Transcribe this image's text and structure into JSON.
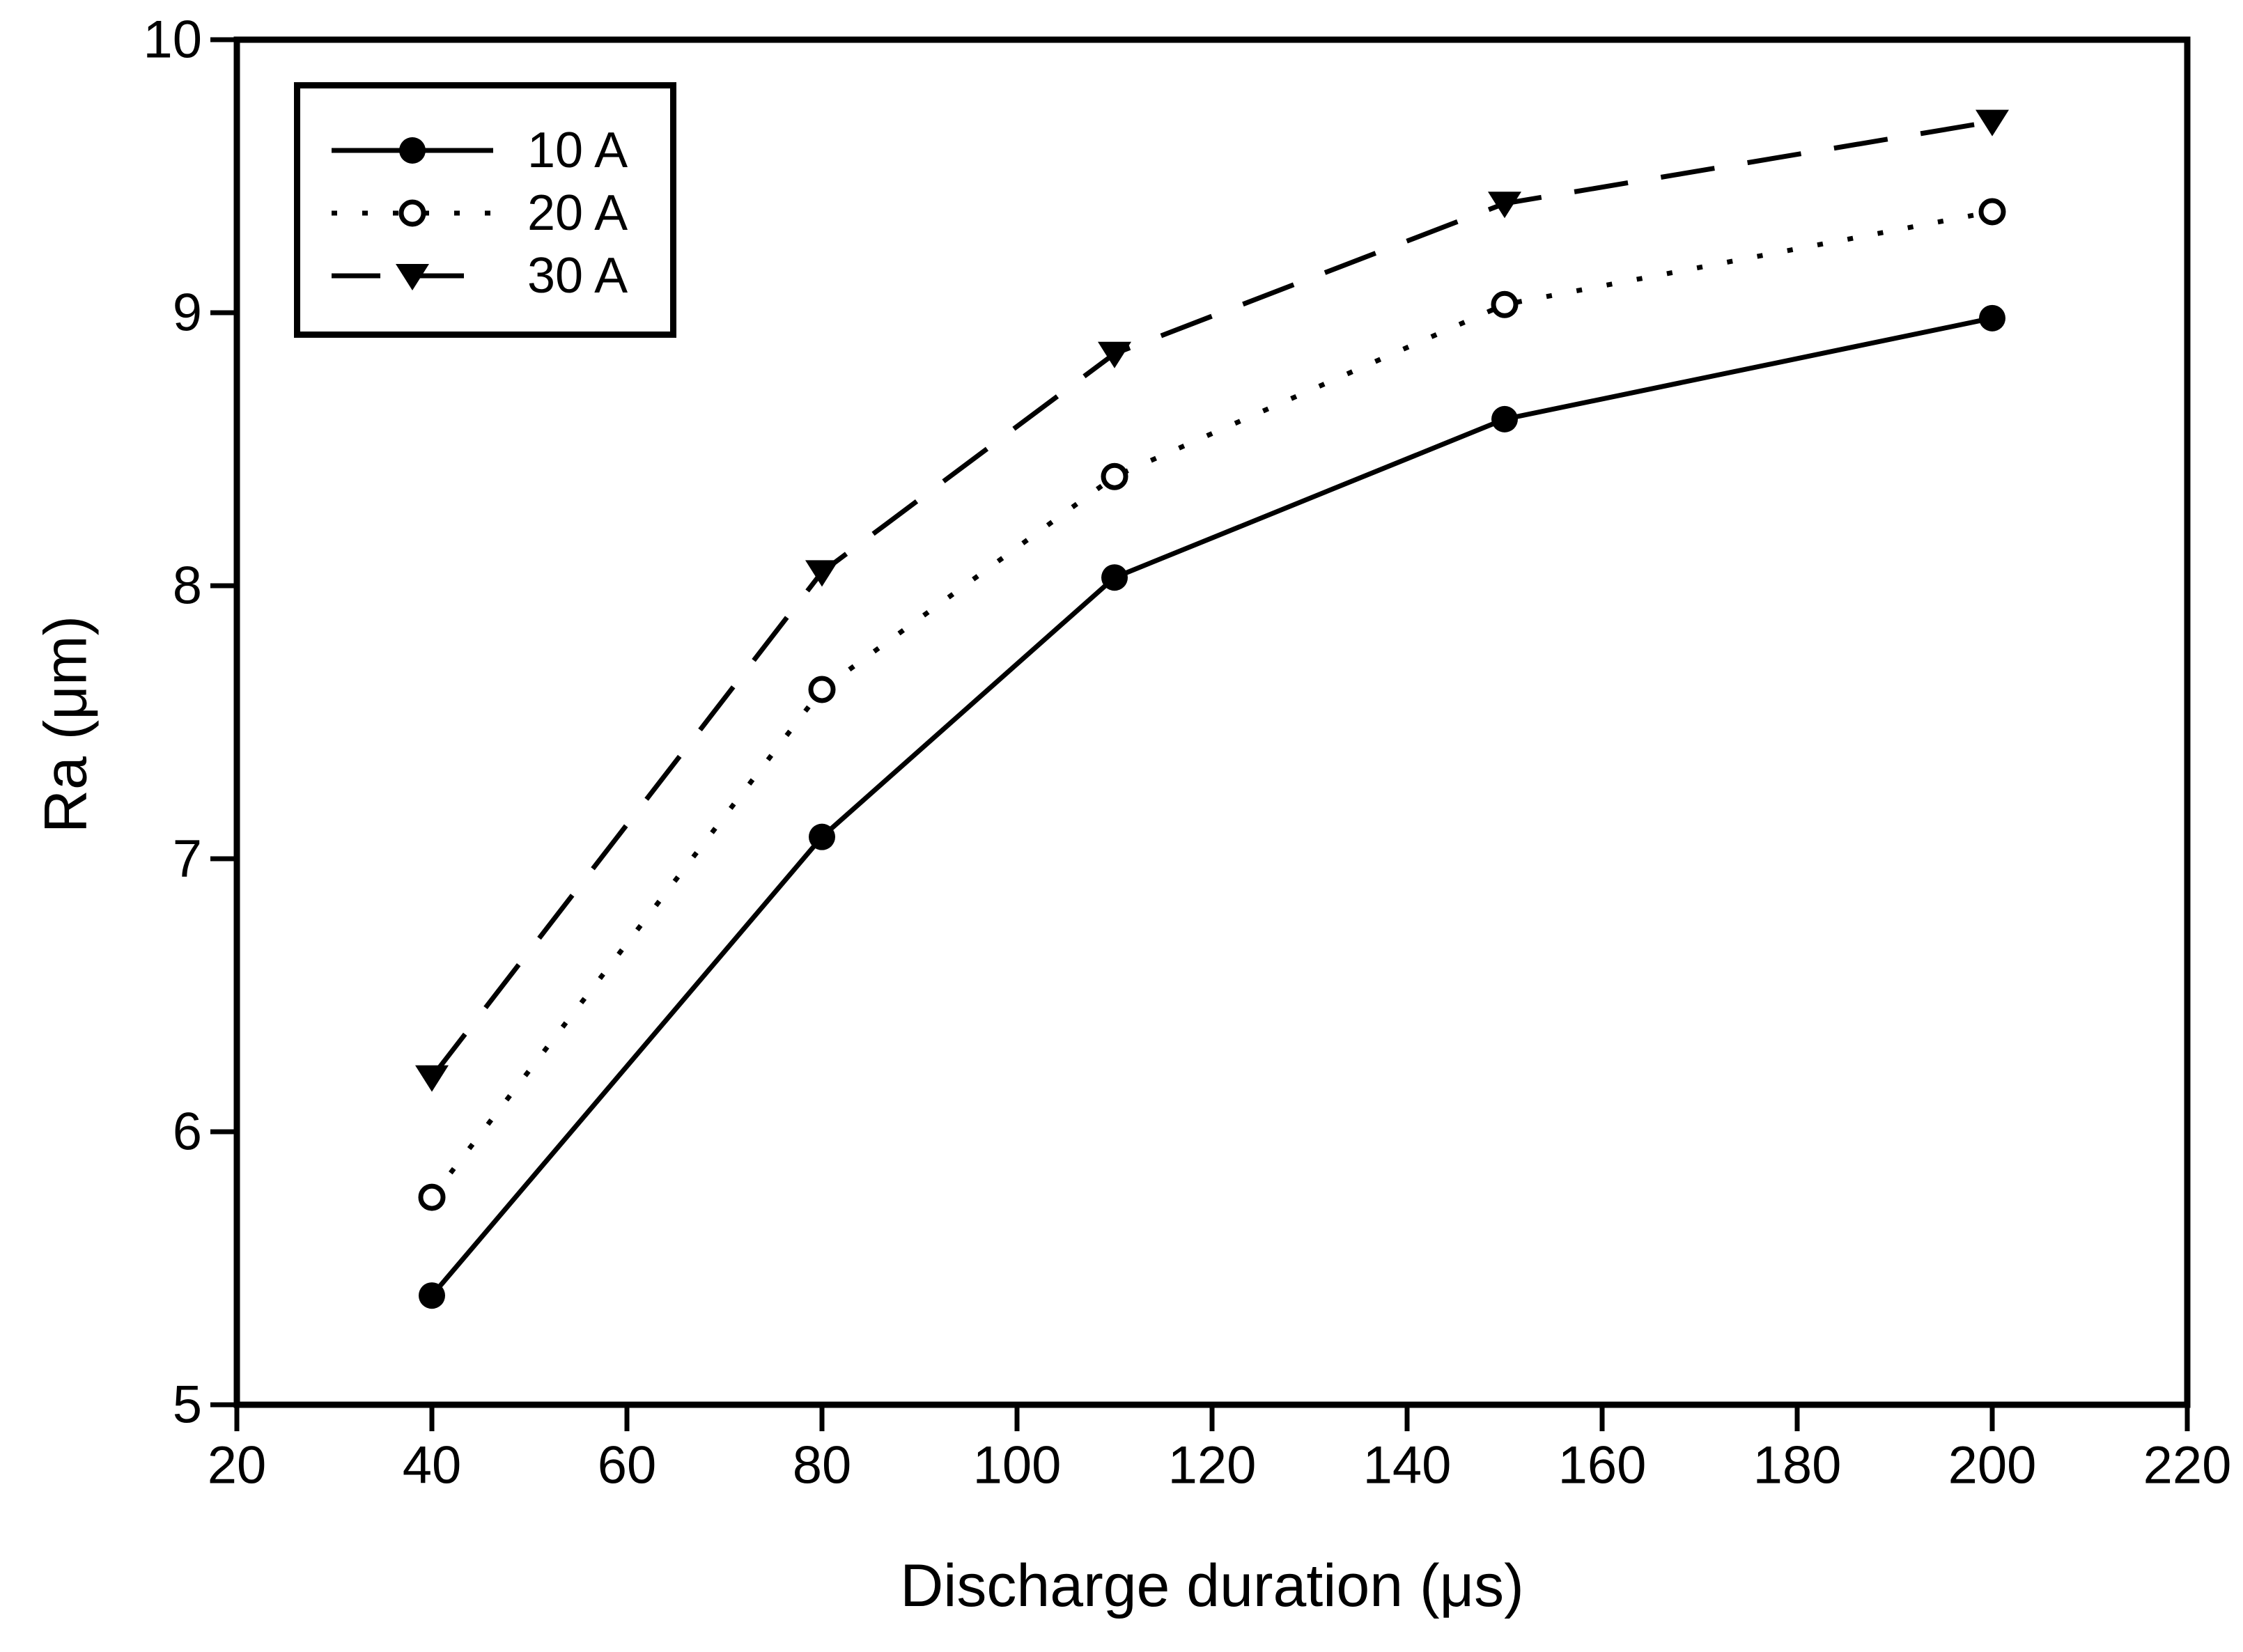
{
  "chart": {
    "x_title": "Discharge duration (μs)",
    "y_title": "Ra (μm)"
  },
  "chart_data": {
    "type": "line",
    "title": "",
    "xlabel": "Discharge duration (μs)",
    "ylabel": "Ra (μm)",
    "x": [
      40,
      80,
      110,
      150,
      200
    ],
    "series": [
      {
        "name": "10 A",
        "marker": "filled-circle",
        "line_style": "solid",
        "values": [
          5.4,
          7.08,
          8.03,
          8.61,
          8.98
        ]
      },
      {
        "name": "20 A",
        "marker": "open-circle",
        "line_style": "dotted",
        "values": [
          5.76,
          7.62,
          8.4,
          9.03,
          9.37
        ]
      },
      {
        "name": "30 A",
        "marker": "triangle-down",
        "line_style": "dashed",
        "values": [
          6.2,
          8.05,
          8.85,
          9.4,
          9.7
        ]
      }
    ],
    "x_ticks": [
      20,
      40,
      60,
      80,
      100,
      120,
      140,
      160,
      180,
      200,
      220
    ],
    "y_ticks": [
      5,
      6,
      7,
      8,
      9,
      10
    ],
    "xlim": [
      20,
      220
    ],
    "ylim": [
      5,
      10
    ],
    "grid": false,
    "legend_position": "upper-left",
    "colors": {
      "foreground": "#000000",
      "background": "#ffffff"
    }
  }
}
